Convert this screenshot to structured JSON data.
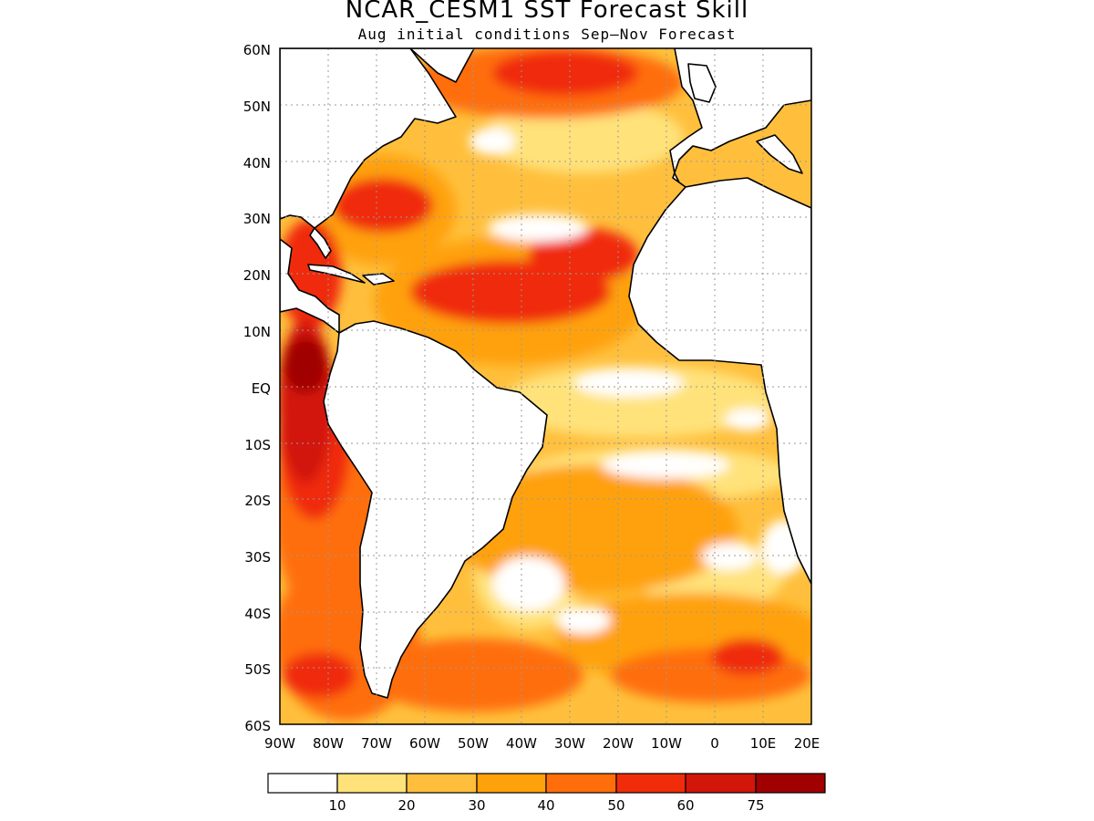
{
  "title": "NCAR_CESM1  SST Forecast Skill",
  "subtitle": "Aug initial conditions  Sep–Nov Forecast",
  "map": {
    "lat_labels": [
      "60N",
      "50N",
      "40N",
      "30N",
      "20N",
      "10N",
      "EQ",
      "10S",
      "20S",
      "30S",
      "40S",
      "50S",
      "60S"
    ],
    "lon_labels": [
      "90W",
      "80W",
      "70W",
      "60W",
      "50W",
      "40W",
      "30W",
      "20W",
      "10W",
      "0",
      "10E",
      "20E"
    ],
    "lat_range": [
      -60,
      60
    ],
    "lon_range": [
      -90,
      20
    ],
    "grid": "dotted",
    "variable": "SST Forecast Skill"
  },
  "colorbar": {
    "labels": [
      "10",
      "20",
      "30",
      "40",
      "50",
      "60",
      "75"
    ],
    "colors": [
      "#ffffff",
      "#ffe27a",
      "#ffbf3c",
      "#ffa10a",
      "#ff6e0a",
      "#f02c0a",
      "#d2160a",
      "#a00000"
    ]
  },
  "colors": {
    "land": "#ffffff",
    "coast": "#000000",
    "grid": "#999999"
  }
}
